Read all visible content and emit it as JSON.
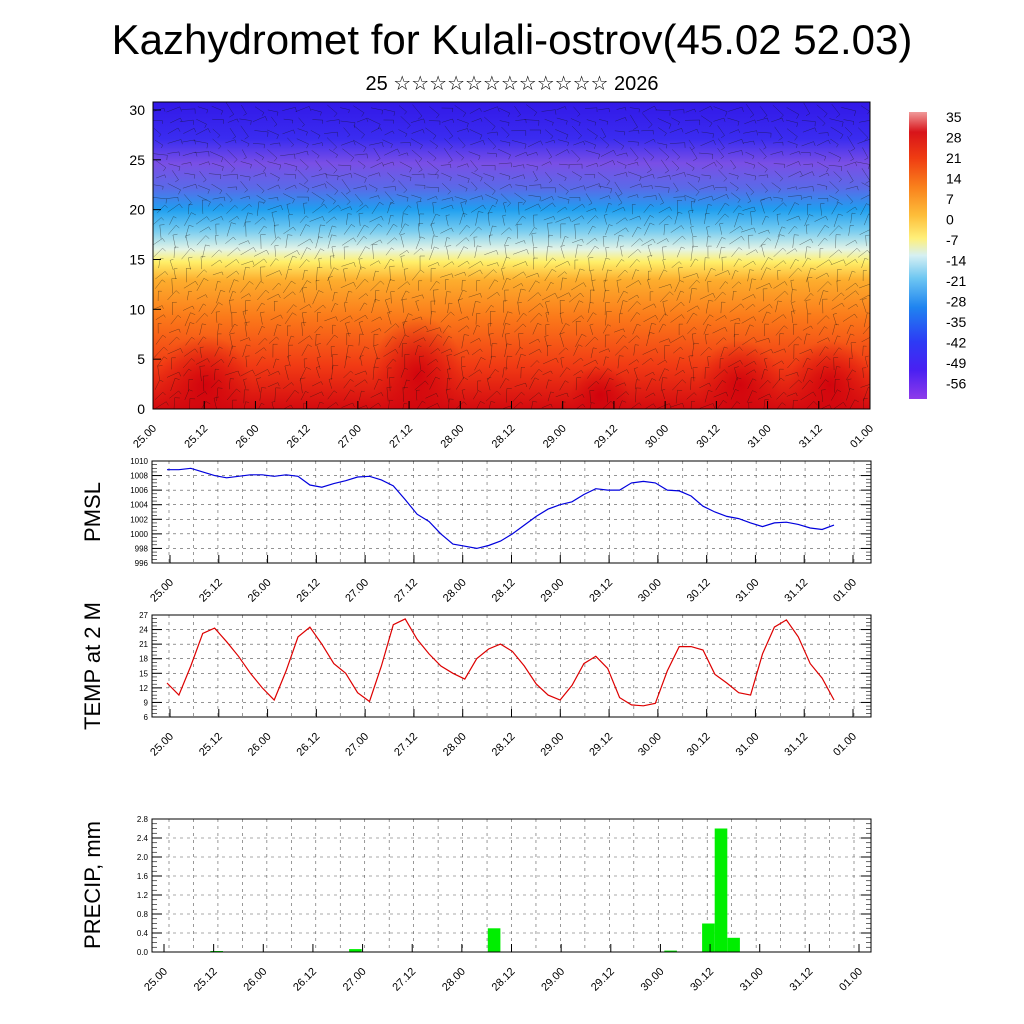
{
  "title": "Kazhydromet for Kulali-ostrov(45.02 52.03)",
  "subtitle": "25 ☆☆☆☆☆☆☆☆☆☆☆☆ 2026",
  "time_labels": [
    "25.00",
    "25.12",
    "26.00",
    "26.12",
    "27.00",
    "27.12",
    "28.00",
    "28.12",
    "29.00",
    "29.12",
    "30.00",
    "30.12",
    "31.00",
    "31.12",
    "01.00"
  ],
  "chart_data": [
    {
      "type": "heatmap",
      "name": "cross-section",
      "y_ticks": [
        0,
        5,
        10,
        15,
        20,
        25,
        30
      ],
      "ylim": [
        0,
        30.8
      ],
      "colorbar_labels": [
        "35",
        "28",
        "21",
        "14",
        "7",
        "0",
        "-7",
        "-14",
        "-21",
        "-28",
        "-35",
        "-42",
        "-49",
        "-56"
      ],
      "colorbar_range": [
        -60,
        38
      ],
      "field_note": "temperature field with wind vectors"
    },
    {
      "type": "line",
      "name": "pmsl",
      "ylabel": "PMSL",
      "ylim": [
        996,
        1010
      ],
      "y_ticks": [
        996,
        998,
        1000,
        1002,
        1004,
        1006,
        1008,
        1010
      ],
      "color": "#0000dd",
      "x": [
        0,
        1,
        2,
        3,
        4,
        5,
        6,
        7,
        8,
        9,
        10,
        11,
        12,
        13,
        14,
        15,
        16,
        17,
        18,
        19,
        20,
        21,
        22,
        23,
        24,
        25,
        26,
        27,
        28,
        29,
        30,
        31,
        32,
        33,
        34,
        35,
        36,
        37,
        38,
        39,
        40,
        41,
        42,
        43,
        44,
        45,
        46,
        47,
        48,
        49,
        50,
        51,
        52,
        53,
        54,
        55,
        56
      ],
      "values": [
        1008.8,
        1008.8,
        1009.0,
        1008.5,
        1008.0,
        1007.7,
        1007.9,
        1008.1,
        1008.1,
        1007.9,
        1008.1,
        1007.9,
        1006.7,
        1006.4,
        1006.9,
        1007.3,
        1007.8,
        1007.9,
        1007.4,
        1006.6,
        1004.7,
        1002.7,
        1001.7,
        1000.0,
        998.6,
        998.3,
        998.0,
        998.4,
        999.0,
        1000.0,
        1001.2,
        1002.4,
        1003.4,
        1004.0,
        1004.4,
        1005.4,
        1006.2,
        1006.0,
        1006.0,
        1007.0,
        1007.2,
        1007.0,
        1006.0,
        1005.9,
        1005.2,
        1003.8,
        1003.0,
        1002.4,
        1002.1,
        1001.5,
        1001.0,
        1001.5,
        1001.6,
        1001.3,
        1000.8,
        1000.6,
        1001.2
      ]
    },
    {
      "type": "line",
      "name": "temp2m",
      "ylabel": "TEMP at 2 M",
      "ylim": [
        6,
        27
      ],
      "y_ticks": [
        6,
        9,
        12,
        15,
        18,
        21,
        24,
        27
      ],
      "color": "#dd0000",
      "x": [
        0,
        2,
        4,
        6,
        8,
        10,
        12,
        14,
        16,
        18,
        20,
        22,
        24,
        26,
        28,
        30,
        32,
        34,
        36,
        38,
        40,
        42,
        44,
        46,
        48,
        50,
        52,
        54,
        56,
        58,
        60,
        62,
        64,
        66,
        68,
        70,
        72,
        74,
        76,
        78,
        80,
        82,
        84,
        86,
        88,
        90,
        92,
        94,
        96,
        98,
        100,
        102,
        104,
        106,
        108,
        110,
        112
      ],
      "values": [
        13.0,
        10.5,
        16.5,
        23.2,
        24.3,
        21.5,
        18.5,
        15.0,
        12.0,
        9.5,
        15.5,
        22.5,
        24.5,
        21.0,
        17.0,
        15.0,
        11.0,
        9.2,
        16.5,
        25.0,
        26.2,
        22.0,
        19.0,
        16.5,
        15.0,
        13.8,
        18.0,
        20.0,
        21.0,
        19.5,
        16.5,
        12.8,
        10.5,
        9.5,
        12.5,
        17.0,
        18.5,
        16.0,
        10.0,
        8.5,
        8.3,
        8.8,
        15.5,
        20.5,
        20.5,
        19.8,
        14.8,
        13.0,
        11.0,
        10.5,
        19.0,
        24.5,
        26.0,
        22.5,
        17.0,
        14.0,
        9.5
      ]
    },
    {
      "type": "bar",
      "name": "precip",
      "ylabel": "PRECIP, mm",
      "ylim": [
        0,
        2.8
      ],
      "y_ticks": [
        0.0,
        0.4,
        0.8,
        1.2,
        1.6,
        2.0,
        2.4,
        2.8
      ],
      "y_tick_labels": [
        "0.0",
        "0.4",
        "0.8",
        "1.2",
        "1.6",
        "2.0",
        "2.4",
        "2.8"
      ],
      "color": "#00ee00",
      "x": [
        4.5,
        15.5,
        26.5,
        40.5,
        43.5,
        44.5,
        45.5
      ],
      "values": [
        0.02,
        0.06,
        0.5,
        0.03,
        0.6,
        2.6,
        0.3
      ]
    }
  ]
}
